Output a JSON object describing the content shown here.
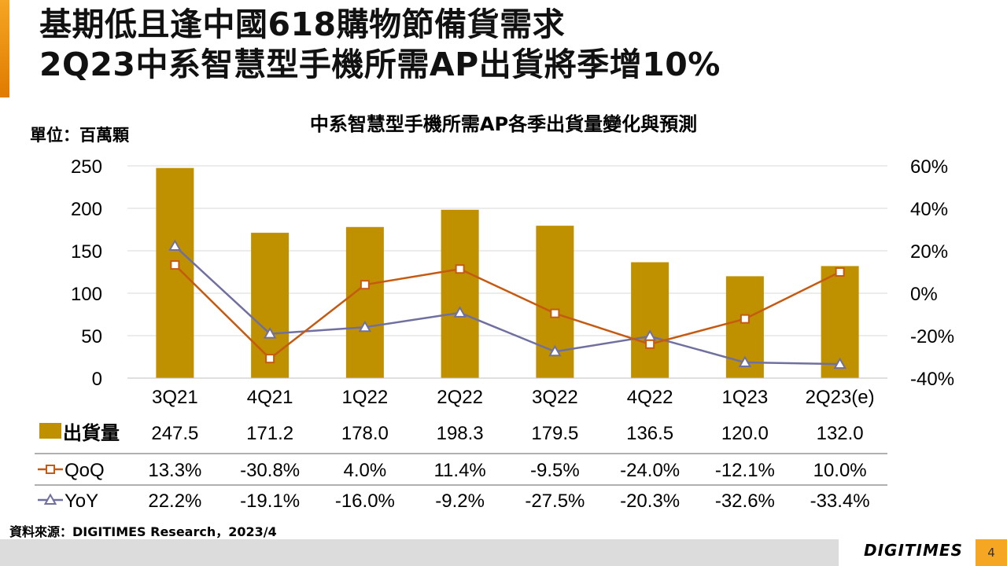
{
  "slide": {
    "title_line1": "基期低且逢中國618購物節備貨需求",
    "title_line2": "2Q23中系智慧型手機所需AP出貨將季增10%",
    "unit_label": "單位：百萬顆",
    "source": "資料來源：DIGITIMES Research，2023/4",
    "logo": "DIGITIMES",
    "page_number": "4"
  },
  "colors": {
    "bar": "#bf9000",
    "qoq": "#c55a11",
    "yoy": "#7070a0",
    "grid": "#d9d9d9"
  },
  "chart_data": {
    "type": "bar",
    "title": "中系智慧型手機所需AP各季出貨量變化與預測",
    "categories": [
      "3Q21",
      "4Q21",
      "1Q22",
      "2Q22",
      "3Q22",
      "4Q22",
      "1Q23",
      "2Q23(e)"
    ],
    "ylim": [
      0,
      250
    ],
    "y_ticks": [
      "250",
      "200",
      "150",
      "100",
      "50",
      "0"
    ],
    "y2lim": [
      -40,
      60
    ],
    "y2_ticks": [
      "60%",
      "40%",
      "20%",
      "0%",
      "-20%",
      "-40%"
    ],
    "series": [
      {
        "name": "出貨量",
        "kind": "bar",
        "axis": "left",
        "values": [
          247.5,
          171.2,
          178.0,
          198.3,
          179.5,
          136.5,
          120.0,
          132.0
        ],
        "labels": [
          "247.5",
          "171.2",
          "178.0",
          "198.3",
          "179.5",
          "136.5",
          "120.0",
          "132.0"
        ]
      },
      {
        "name": "QoQ",
        "kind": "line",
        "axis": "right",
        "marker": "square",
        "values": [
          13.3,
          -30.8,
          4.0,
          11.4,
          -9.5,
          -24.0,
          -12.1,
          10.0
        ],
        "labels": [
          "13.3%",
          "-30.8%",
          "4.0%",
          "11.4%",
          "-9.5%",
          "-24.0%",
          "-12.1%",
          "10.0%"
        ]
      },
      {
        "name": "YoY",
        "kind": "line",
        "axis": "right",
        "marker": "triangle",
        "values": [
          22.2,
          -19.1,
          -16.0,
          -9.2,
          -27.5,
          -20.3,
          -32.6,
          -33.4
        ],
        "labels": [
          "22.2%",
          "-19.1%",
          "-16.0%",
          "-9.2%",
          "-27.5%",
          "-20.3%",
          "-32.6%",
          "-33.4%"
        ]
      }
    ]
  }
}
